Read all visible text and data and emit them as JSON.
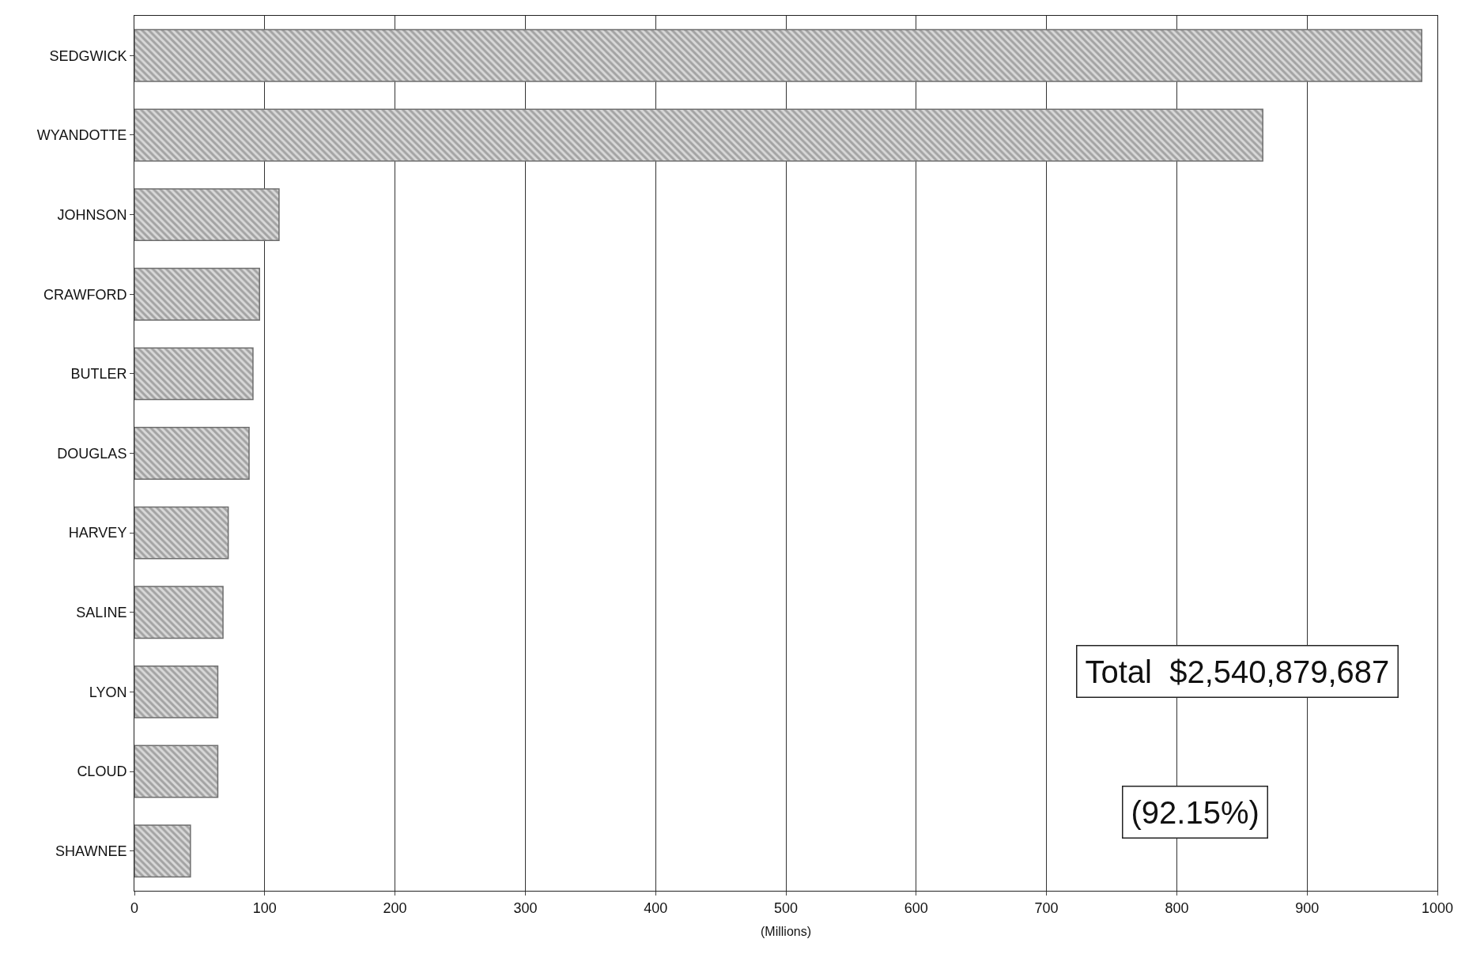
{
  "chart_data": {
    "type": "bar",
    "orientation": "horizontal",
    "xlabel": "(Millions)",
    "categories": [
      "SEDGWICK",
      "WYANDOTTE",
      "JOHNSON",
      "CRAWFORD",
      "BUTLER",
      "DOUGLAS",
      "HARVEY",
      "SALINE",
      "LYON",
      "CLOUD",
      "SHAWNEE"
    ],
    "values": [
      988,
      866,
      111,
      96,
      91,
      88,
      72,
      68,
      64,
      64,
      43
    ],
    "color": "#6e6e6e",
    "xlim": [
      0,
      1000
    ],
    "xticks": [
      0,
      100,
      200,
      300,
      400,
      500,
      600,
      700,
      800,
      900,
      1000
    ],
    "grid": "x",
    "annotations": [
      "Total  $2,540,879,687",
      "(92.15%)"
    ]
  }
}
